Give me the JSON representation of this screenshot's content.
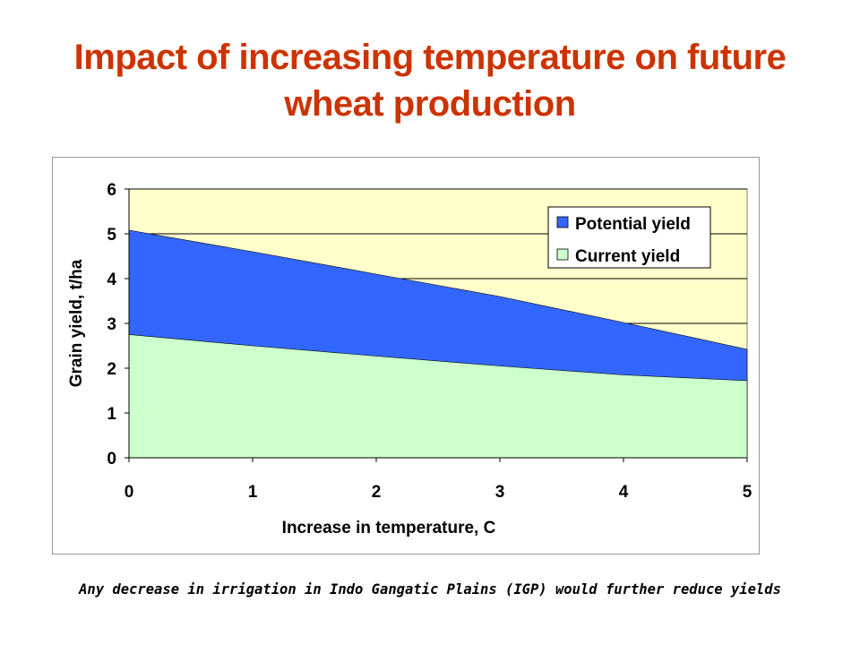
{
  "title": {
    "line1": "Impact of increasing temperature on future",
    "line2": "wheat production"
  },
  "footnote": "Any decrease in irrigation in Indo Gangatic Plains (IGP) would further reduce yields",
  "colors": {
    "title": "#cc3300",
    "plot_background": "#ffffcc",
    "potential_yield": "#3366ff",
    "current_yield": "#ccffcc",
    "gridline": "#000000"
  },
  "chart_data": {
    "type": "area",
    "xlabel": "Increase in temperature, C",
    "ylabel": "Grain yield, t/ha",
    "x": [
      0,
      1,
      2,
      3,
      4,
      5
    ],
    "xlim": [
      0,
      5
    ],
    "ylim": [
      0,
      6
    ],
    "x_ticks": [
      "0",
      "1",
      "2",
      "3",
      "4",
      "5"
    ],
    "y_ticks": [
      "0",
      "1",
      "2",
      "3",
      "4",
      "5",
      "6"
    ],
    "grid": "horizontal",
    "legend_position": "top-right",
    "series": [
      {
        "name": "Potential yield",
        "values": [
          5.08,
          4.6,
          4.1,
          3.6,
          3.02,
          2.42
        ]
      },
      {
        "name": "Current yield",
        "values": [
          2.75,
          2.5,
          2.27,
          2.05,
          1.85,
          1.72
        ]
      }
    ]
  }
}
